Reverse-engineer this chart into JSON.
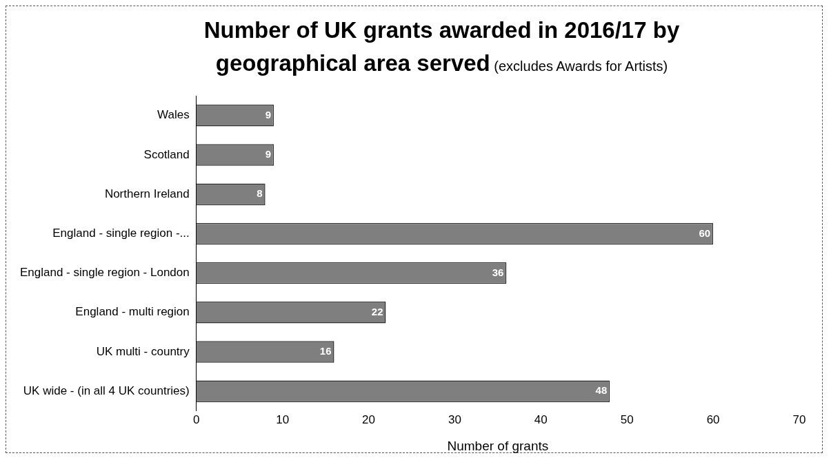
{
  "chart_data": {
    "type": "bar",
    "orientation": "horizontal",
    "title": "Number of UK grants awarded in 2016/17 by geographical area served",
    "subtitle": "(excludes Awards for Artists)",
    "xlabel": "Number of grants",
    "categories": [
      "Wales",
      "Scotland",
      "Northern Ireland",
      "England - single region -...",
      "England - single region - London",
      "England - multi region",
      "UK multi - country",
      "UK wide - (in all 4 UK countries)"
    ],
    "values": [
      9,
      9,
      8,
      60,
      36,
      22,
      16,
      48
    ],
    "color": "#7f7f7f",
    "xlim": [
      0,
      70
    ],
    "xticks": [
      0,
      10,
      20,
      30,
      40,
      50,
      60,
      70
    ],
    "grid": false,
    "legend": false,
    "data_labels": true
  }
}
